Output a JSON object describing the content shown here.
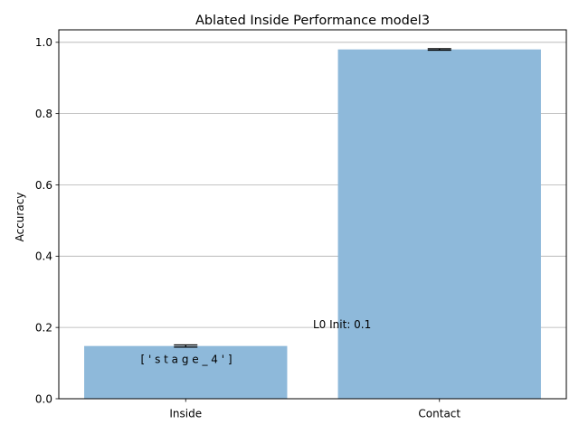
{
  "chart_data": {
    "type": "bar",
    "title": "Ablated Inside Performance model3",
    "xlabel": "",
    "ylabel": "Accuracy",
    "categories": [
      "Inside",
      "Contact"
    ],
    "values": [
      0.148,
      0.98
    ],
    "errors": [
      0.003,
      0.002
    ],
    "ylim": [
      0.0,
      1.035
    ],
    "yticks": [
      0.0,
      0.2,
      0.4,
      0.6,
      0.8,
      1.0
    ],
    "ytick_labels": [
      "0.0",
      "0.2",
      "0.4",
      "0.6",
      "0.8",
      "1.0"
    ],
    "grid": "y",
    "bar_color": "#8eb9da",
    "annotations": [
      {
        "text": "[ ' s t a g e _ 4 ' ]"
      },
      {
        "text": "L0 Init: 0.1"
      }
    ]
  }
}
